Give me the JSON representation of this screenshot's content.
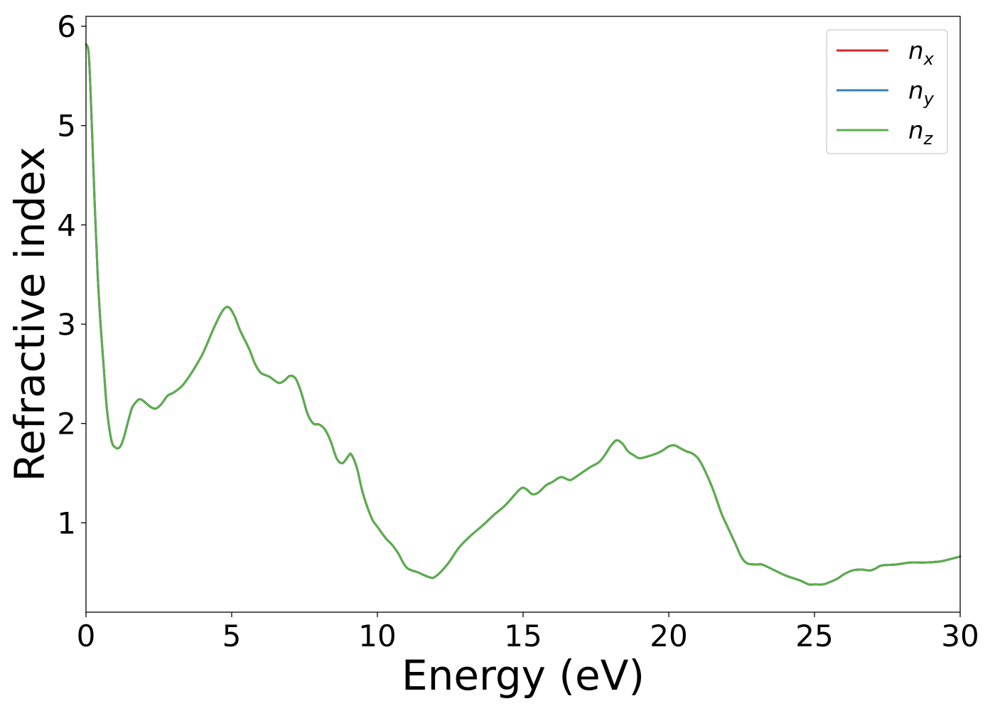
{
  "chart_data": {
    "type": "line",
    "title": "",
    "xlabel": "Energy (eV)",
    "ylabel": "Refractive index",
    "xlim": [
      0,
      30
    ],
    "ylim": [
      0.1,
      6.1
    ],
    "x_ticks": [
      0,
      5,
      10,
      15,
      20,
      25,
      30
    ],
    "y_ticks": [
      1,
      2,
      3,
      4,
      5,
      6
    ],
    "grid": false,
    "legend_position": "top-right",
    "series": [
      {
        "name": "n",
        "subscript": "x",
        "color": "#d62728",
        "values": "same as n_z (curves overlap)"
      },
      {
        "name": "n",
        "subscript": "y",
        "color": "#377eb8",
        "values": "same as n_z (curves overlap)"
      },
      {
        "name": "n",
        "subscript": "z",
        "color": "#5aae4a"
      }
    ],
    "x": [
      0,
      0.1,
      0.2,
      0.3,
      0.4,
      0.5,
      0.6,
      0.7,
      0.8,
      0.9,
      1.0,
      1.1,
      1.2,
      1.3,
      1.4,
      1.5,
      1.6,
      1.8,
      1.9,
      2.0,
      2.2,
      2.4,
      2.6,
      2.8,
      3.0,
      3.3,
      3.6,
      4.0,
      4.4,
      4.7,
      4.9,
      5.1,
      5.3,
      5.6,
      5.8,
      6.0,
      6.3,
      6.6,
      6.8,
      7.0,
      7.2,
      7.4,
      7.6,
      7.8,
      8.0,
      8.2,
      8.4,
      8.6,
      8.8,
      9.0,
      9.1,
      9.3,
      9.5,
      9.8,
      10.0,
      10.3,
      10.5,
      10.7,
      11.0,
      11.4,
      11.8,
      12.0,
      12.4,
      12.8,
      13.2,
      13.6,
      14.0,
      14.4,
      14.9,
      15.1,
      15.3,
      15.5,
      15.8,
      16.0,
      16.3,
      16.6,
      16.8,
      17.0,
      17.3,
      17.6,
      17.8,
      18.0,
      18.2,
      18.4,
      18.6,
      18.8,
      19.0,
      19.3,
      19.6,
      19.8,
      20.0,
      20.2,
      20.4,
      20.6,
      20.8,
      21.0,
      21.2,
      21.5,
      21.8,
      22.0,
      22.3,
      22.5,
      22.7,
      23.0,
      23.2,
      23.5,
      24.0,
      24.5,
      24.8,
      25.0,
      25.3,
      25.5,
      25.8,
      26.0,
      26.3,
      26.6,
      26.9,
      27.1,
      27.3,
      27.8,
      28.3,
      28.8,
      29.3,
      29.6,
      30.0
    ],
    "values": [
      5.82,
      5.7,
      5.0,
      4.2,
      3.5,
      3.0,
      2.6,
      2.2,
      1.95,
      1.8,
      1.76,
      1.75,
      1.78,
      1.86,
      1.97,
      2.08,
      2.17,
      2.24,
      2.24,
      2.22,
      2.17,
      2.15,
      2.2,
      2.28,
      2.31,
      2.38,
      2.5,
      2.7,
      2.97,
      3.14,
      3.17,
      3.08,
      2.93,
      2.75,
      2.6,
      2.51,
      2.47,
      2.41,
      2.43,
      2.48,
      2.45,
      2.3,
      2.1,
      2.0,
      1.99,
      1.94,
      1.82,
      1.65,
      1.6,
      1.67,
      1.69,
      1.55,
      1.3,
      1.05,
      0.96,
      0.84,
      0.78,
      0.7,
      0.55,
      0.5,
      0.45,
      0.46,
      0.58,
      0.75,
      0.87,
      0.97,
      1.08,
      1.18,
      1.34,
      1.34,
      1.29,
      1.3,
      1.38,
      1.41,
      1.46,
      1.43,
      1.46,
      1.5,
      1.56,
      1.61,
      1.68,
      1.77,
      1.83,
      1.8,
      1.72,
      1.68,
      1.65,
      1.67,
      1.7,
      1.73,
      1.77,
      1.78,
      1.75,
      1.72,
      1.7,
      1.65,
      1.55,
      1.35,
      1.1,
      0.97,
      0.78,
      0.65,
      0.59,
      0.58,
      0.58,
      0.54,
      0.47,
      0.42,
      0.38,
      0.38,
      0.38,
      0.4,
      0.44,
      0.48,
      0.52,
      0.53,
      0.52,
      0.54,
      0.57,
      0.58,
      0.6,
      0.6,
      0.61,
      0.63,
      0.66
    ]
  }
}
